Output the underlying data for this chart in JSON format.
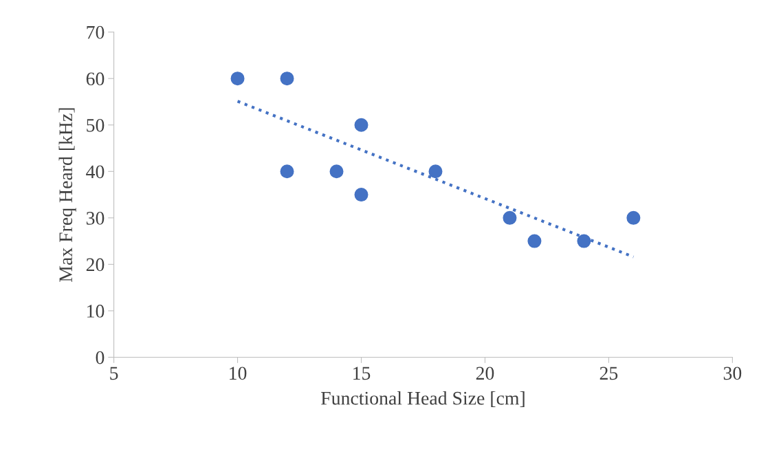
{
  "chart_data": {
    "type": "scatter",
    "xlabel": "Functional Head Size [cm]",
    "ylabel": "Max Freq Heard [kHz]",
    "xlim": [
      5,
      30
    ],
    "xticks": [
      5,
      10,
      15,
      20,
      25,
      30
    ],
    "ylim": [
      0,
      70
    ],
    "yticks": [
      0,
      10,
      20,
      30,
      40,
      50,
      60,
      70
    ],
    "grid": false,
    "series": [
      {
        "marker": "circle",
        "color": "#4472c4",
        "x": [
          10,
          12,
          12,
          14,
          15,
          15,
          18,
          21,
          22,
          24,
          26
        ],
        "values": [
          60,
          60,
          40,
          40,
          50,
          35,
          40,
          30,
          25,
          25,
          30
        ]
      },
      {
        "type": "line",
        "line_style": "dotted",
        "color": "#4472c4",
        "x": [
          10,
          26
        ],
        "values": [
          55.1,
          21.6
        ]
      }
    ]
  }
}
